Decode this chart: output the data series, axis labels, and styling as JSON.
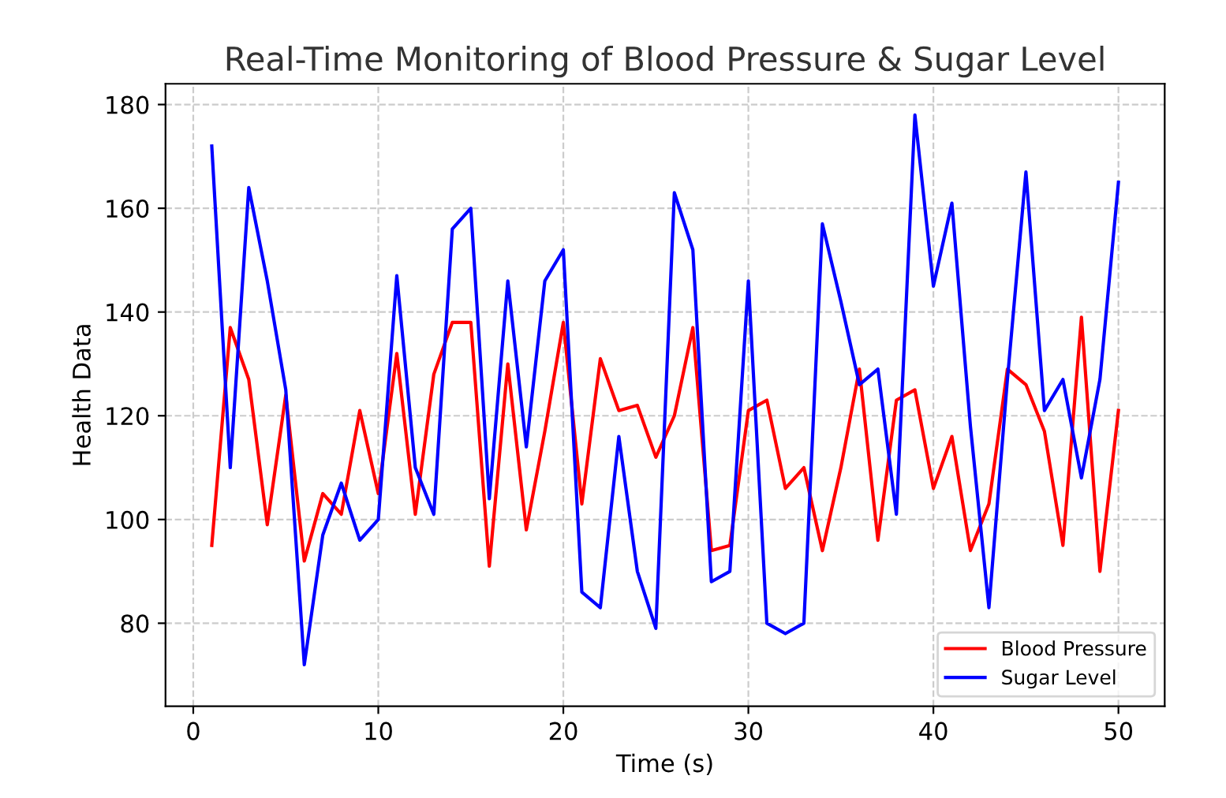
{
  "chart_data": {
    "type": "line",
    "title": "Real-Time Monitoring of Blood Pressure & Sugar Level",
    "xlabel": "Time (s)",
    "ylabel": "Health Data",
    "x": [
      1,
      2,
      3,
      4,
      5,
      6,
      7,
      8,
      9,
      10,
      11,
      12,
      13,
      14,
      15,
      16,
      17,
      18,
      19,
      20,
      21,
      22,
      23,
      24,
      25,
      26,
      27,
      28,
      29,
      30,
      31,
      32,
      33,
      34,
      35,
      36,
      37,
      38,
      39,
      40,
      41,
      42,
      43,
      44,
      45,
      46,
      47,
      48,
      49,
      50
    ],
    "series": [
      {
        "name": "Blood Pressure",
        "color": "#ff0000",
        "values": [
          95,
          137,
          127,
          99,
          124,
          92,
          105,
          101,
          121,
          105,
          132,
          101,
          128,
          138,
          138,
          91,
          130,
          98,
          117,
          138,
          103,
          131,
          121,
          122,
          112,
          120,
          137,
          94,
          95,
          121,
          123,
          106,
          110,
          94,
          110,
          129,
          96,
          123,
          125,
          106,
          116,
          94,
          103,
          129,
          126,
          117,
          95,
          139,
          90,
          121
        ]
      },
      {
        "name": "Sugar Level",
        "color": "#0000ff",
        "values": [
          172,
          110,
          164,
          146,
          125,
          72,
          97,
          107,
          96,
          100,
          147,
          110,
          101,
          156,
          160,
          104,
          146,
          114,
          146,
          152,
          86,
          83,
          116,
          90,
          79,
          163,
          152,
          88,
          90,
          146,
          80,
          78,
          80,
          157,
          142,
          126,
          129,
          101,
          178,
          145,
          161,
          118,
          83,
          127,
          167,
          121,
          127,
          108,
          127,
          165
        ]
      }
    ],
    "xlim": [
      -1.5,
      52.5
    ],
    "ylim": [
      64,
      184
    ],
    "xticks": [
      0,
      10,
      20,
      30,
      40,
      50
    ],
    "yticks": [
      80,
      100,
      120,
      140,
      160,
      180
    ],
    "grid": true,
    "legend": "bottom right",
    "line_style": "solid",
    "marker": "none"
  }
}
